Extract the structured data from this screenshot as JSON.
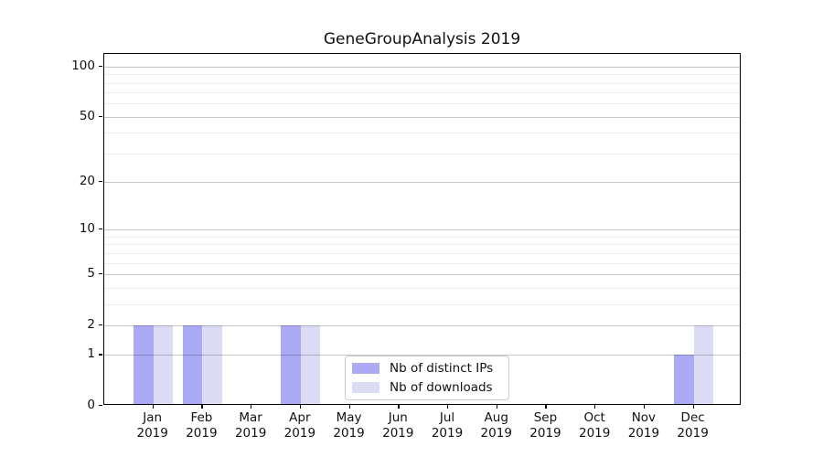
{
  "title": "GeneGroupAnalysis 2019",
  "chart_data": {
    "type": "bar",
    "categories": [
      "Jan\n2019",
      "Feb\n2019",
      "Mar\n2019",
      "Apr\n2019",
      "May\n2019",
      "Jun\n2019",
      "Jul\n2019",
      "Aug\n2019",
      "Sep\n2019",
      "Oct\n2019",
      "Nov\n2019",
      "Dec\n2019"
    ],
    "series": [
      {
        "name": "Nb of distinct IPs",
        "color": "#aaaaf5",
        "values": [
          2,
          2,
          0,
          2,
          0,
          0,
          0,
          0,
          0,
          0,
          0,
          1
        ]
      },
      {
        "name": "Nb of downloads",
        "color": "#dcdcf7",
        "values": [
          2,
          2,
          0,
          2,
          0,
          0,
          0,
          0,
          0,
          0,
          0,
          2
        ]
      }
    ],
    "yscale": "log1p",
    "yticks": [
      0,
      1,
      2,
      5,
      10,
      20,
      50,
      100
    ],
    "minor_yticks": [
      3,
      4,
      6,
      7,
      8,
      9,
      30,
      40,
      60,
      70,
      80,
      90
    ],
    "ylim": [
      0,
      118
    ],
    "xlabel": "",
    "ylabel": "",
    "grid": "horizontal-major-and-minor",
    "legend_position": "lower-center-inside"
  },
  "colors": {
    "axis": "#000000",
    "grid_major": "#c7c7c7",
    "grid_minor": "#ededed",
    "legend_border": "#cccccc",
    "background": "#ffffff"
  }
}
